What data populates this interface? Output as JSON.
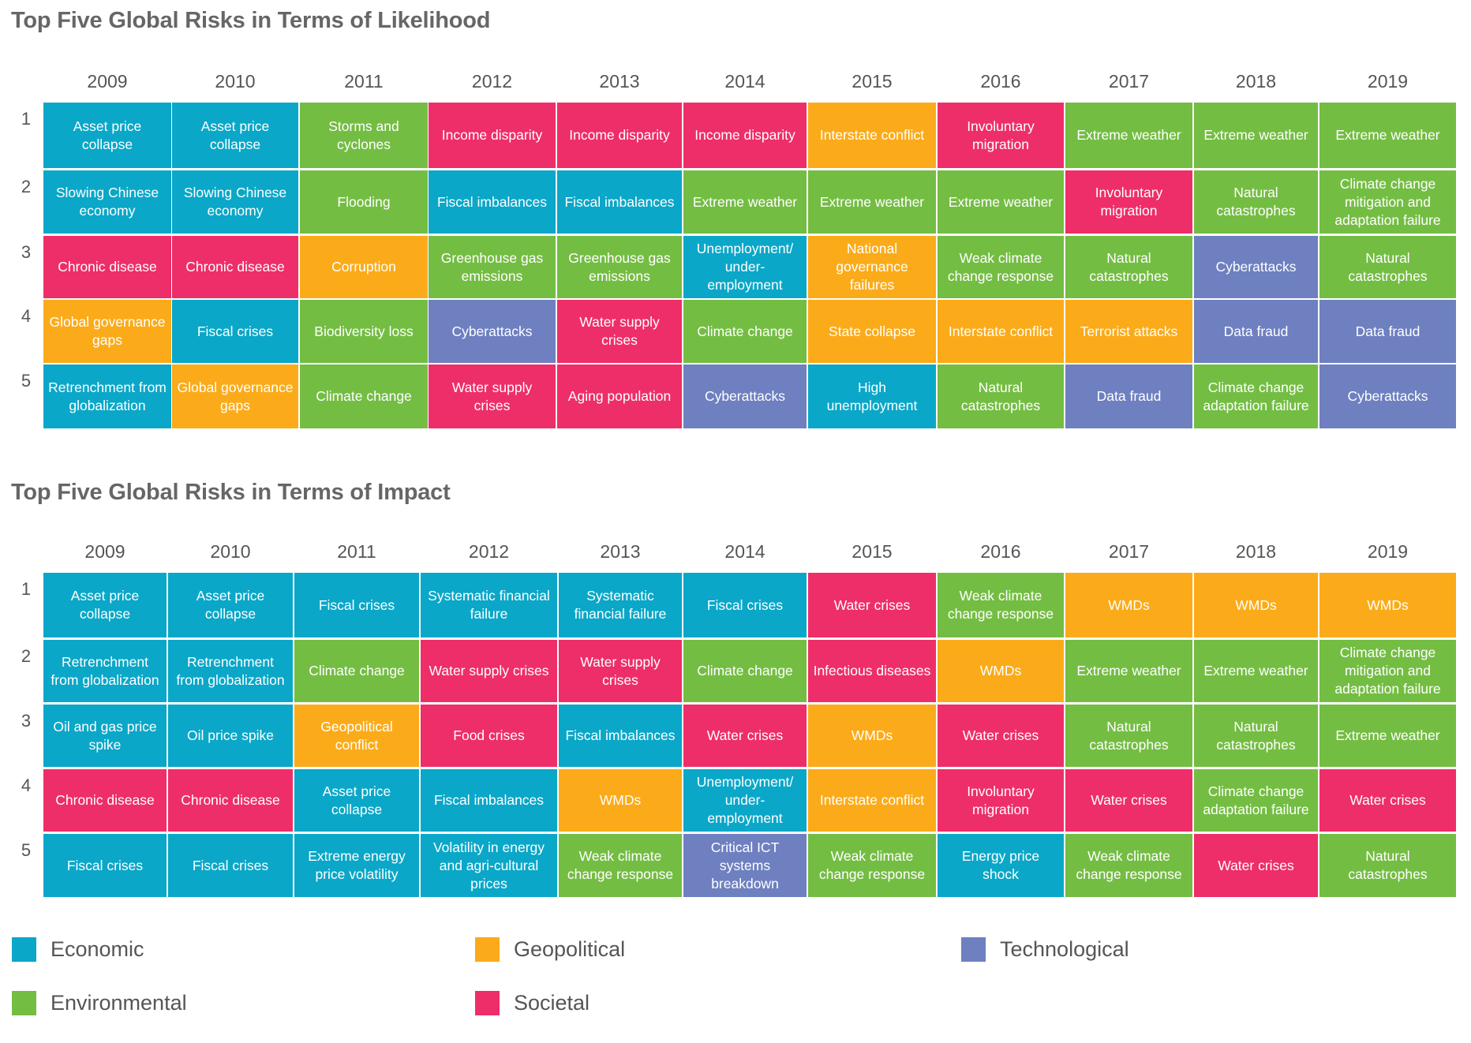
{
  "colors": {
    "Economic": "#0aa7c8",
    "Geopolitical": "#fbab19",
    "Technological": "#6e80c0",
    "Environmental": "#74bd43",
    "Societal": "#ee2e68"
  },
  "legend": [
    {
      "category": "Economic",
      "label": "Economic"
    },
    {
      "category": "Geopolitical",
      "label": "Geopolitical"
    },
    {
      "category": "Technological",
      "label": "Technological"
    },
    {
      "category": "Environmental",
      "label": "Environmental"
    },
    {
      "category": "Societal",
      "label": "Societal"
    }
  ],
  "chart_data": [
    {
      "type": "table",
      "title": "Top Five Global Risks in Terms of Likelihood",
      "years": [
        "2009",
        "2010",
        "2011",
        "2012",
        "2013",
        "2014",
        "2015",
        "2016",
        "2017",
        "2018",
        "2019"
      ],
      "ranks": [
        "1",
        "2",
        "3",
        "4",
        "5"
      ],
      "cells": [
        [
          {
            "label": "Asset price collapse",
            "category": "Economic"
          },
          {
            "label": "Asset price collapse",
            "category": "Economic"
          },
          {
            "label": "Storms and cyclones",
            "category": "Environmental"
          },
          {
            "label": "Income disparity",
            "category": "Societal"
          },
          {
            "label": "Income disparity",
            "category": "Societal"
          },
          {
            "label": "Income disparity",
            "category": "Societal"
          },
          {
            "label": "Interstate conflict",
            "category": "Geopolitical"
          },
          {
            "label": "Involuntary migration",
            "category": "Societal"
          },
          {
            "label": "Extreme weather",
            "category": "Environmental"
          },
          {
            "label": "Extreme weather",
            "category": "Environmental"
          },
          {
            "label": "Extreme weather",
            "category": "Environmental"
          }
        ],
        [
          {
            "label": "Slowing Chinese economy",
            "category": "Economic"
          },
          {
            "label": "Slowing Chinese economy",
            "category": "Economic"
          },
          {
            "label": "Flooding",
            "category": "Environmental"
          },
          {
            "label": "Fiscal imbalances",
            "category": "Economic"
          },
          {
            "label": "Fiscal imbalances",
            "category": "Economic"
          },
          {
            "label": "Extreme weather",
            "category": "Environmental"
          },
          {
            "label": "Extreme weather",
            "category": "Environmental"
          },
          {
            "label": "Extreme weather",
            "category": "Environmental"
          },
          {
            "label": "Involuntary migration",
            "category": "Societal"
          },
          {
            "label": "Natural catastrophes",
            "category": "Environmental"
          },
          {
            "label": "Climate change mitigation and adaptation failure",
            "category": "Environmental"
          }
        ],
        [
          {
            "label": "Chronic disease",
            "category": "Societal"
          },
          {
            "label": "Chronic disease",
            "category": "Societal"
          },
          {
            "label": "Corruption",
            "category": "Geopolitical"
          },
          {
            "label": "Greenhouse gas emissions",
            "category": "Environmental"
          },
          {
            "label": "Greenhouse gas emissions",
            "category": "Environmental"
          },
          {
            "label": "Unemployment/ under-employment",
            "category": "Economic"
          },
          {
            "label": "National governance failures",
            "category": "Geopolitical"
          },
          {
            "label": "Weak climate change response",
            "category": "Environmental"
          },
          {
            "label": "Natural catastrophes",
            "category": "Environmental"
          },
          {
            "label": "Cyberattacks",
            "category": "Technological"
          },
          {
            "label": "Natural catastrophes",
            "category": "Environmental"
          }
        ],
        [
          {
            "label": "Global governance gaps",
            "category": "Geopolitical"
          },
          {
            "label": "Fiscal crises",
            "category": "Economic"
          },
          {
            "label": "Biodiversity loss",
            "category": "Environmental"
          },
          {
            "label": "Cyberattacks",
            "category": "Technological"
          },
          {
            "label": "Water supply crises",
            "category": "Societal"
          },
          {
            "label": "Climate change",
            "category": "Environmental"
          },
          {
            "label": "State collapse",
            "category": "Geopolitical"
          },
          {
            "label": "Interstate conflict",
            "category": "Geopolitical"
          },
          {
            "label": "Terrorist attacks",
            "category": "Geopolitical"
          },
          {
            "label": "Data fraud",
            "category": "Technological"
          },
          {
            "label": "Data fraud",
            "category": "Technological"
          }
        ],
        [
          {
            "label": "Retrenchment from globalization",
            "category": "Economic"
          },
          {
            "label": "Global governance gaps",
            "category": "Geopolitical"
          },
          {
            "label": "Climate change",
            "category": "Environmental"
          },
          {
            "label": "Water supply crises",
            "category": "Societal"
          },
          {
            "label": "Aging population",
            "category": "Societal"
          },
          {
            "label": "Cyberattacks",
            "category": "Technological"
          },
          {
            "label": "High unemployment",
            "category": "Economic"
          },
          {
            "label": "Natural catastrophes",
            "category": "Environmental"
          },
          {
            "label": "Data fraud",
            "category": "Technological"
          },
          {
            "label": "Climate change adaptation failure",
            "category": "Environmental"
          },
          {
            "label": "Cyberattacks",
            "category": "Technological"
          }
        ]
      ]
    },
    {
      "type": "table",
      "title": "Top Five Global Risks in Terms of Impact",
      "years": [
        "2009",
        "2010",
        "2011",
        "2012",
        "2013",
        "2014",
        "2015",
        "2016",
        "2017",
        "2018",
        "2019"
      ],
      "ranks": [
        "1",
        "2",
        "3",
        "4",
        "5"
      ],
      "cells": [
        [
          {
            "label": "Asset price collapse",
            "category": "Economic"
          },
          {
            "label": "Asset price collapse",
            "category": "Economic"
          },
          {
            "label": "Fiscal crises",
            "category": "Economic"
          },
          {
            "label": "Systematic financial failure",
            "category": "Economic"
          },
          {
            "label": "Systematic financial failure",
            "category": "Economic"
          },
          {
            "label": "Fiscal crises",
            "category": "Economic"
          },
          {
            "label": "Water crises",
            "category": "Societal"
          },
          {
            "label": "Weak climate change response",
            "category": "Environmental"
          },
          {
            "label": "WMDs",
            "category": "Geopolitical"
          },
          {
            "label": "WMDs",
            "category": "Geopolitical"
          },
          {
            "label": "WMDs",
            "category": "Geopolitical"
          }
        ],
        [
          {
            "label": "Retrenchment from globalization",
            "category": "Economic"
          },
          {
            "label": "Retrenchment from globalization",
            "category": "Economic"
          },
          {
            "label": "Climate change",
            "category": "Environmental"
          },
          {
            "label": "Water supply crises",
            "category": "Societal"
          },
          {
            "label": "Water supply crises",
            "category": "Societal"
          },
          {
            "label": "Climate change",
            "category": "Environmental"
          },
          {
            "label": "Infectious diseases",
            "category": "Societal"
          },
          {
            "label": "WMDs",
            "category": "Geopolitical"
          },
          {
            "label": "Extreme weather",
            "category": "Environmental"
          },
          {
            "label": "Extreme weather",
            "category": "Environmental"
          },
          {
            "label": "Climate change mitigation and adaptation failure",
            "category": "Environmental"
          }
        ],
        [
          {
            "label": "Oil and gas price spike",
            "category": "Economic"
          },
          {
            "label": "Oil price spike",
            "category": "Economic"
          },
          {
            "label": "Geopolitical conflict",
            "category": "Geopolitical"
          },
          {
            "label": "Food crises",
            "category": "Societal"
          },
          {
            "label": "Fiscal imbalances",
            "category": "Economic"
          },
          {
            "label": "Water crises",
            "category": "Societal"
          },
          {
            "label": "WMDs",
            "category": "Geopolitical"
          },
          {
            "label": "Water crises",
            "category": "Societal"
          },
          {
            "label": "Natural catastrophes",
            "category": "Environmental"
          },
          {
            "label": "Natural catastrophes",
            "category": "Environmental"
          },
          {
            "label": "Extreme weather",
            "category": "Environmental"
          }
        ],
        [
          {
            "label": "Chronic disease",
            "category": "Societal"
          },
          {
            "label": "Chronic disease",
            "category": "Societal"
          },
          {
            "label": "Asset price collapse",
            "category": "Economic"
          },
          {
            "label": "Fiscal imbalances",
            "category": "Economic"
          },
          {
            "label": "WMDs",
            "category": "Geopolitical"
          },
          {
            "label": "Unemployment/ under-employment",
            "category": "Economic"
          },
          {
            "label": "Interstate conflict",
            "category": "Geopolitical"
          },
          {
            "label": "Involuntary migration",
            "category": "Societal"
          },
          {
            "label": "Water crises",
            "category": "Societal"
          },
          {
            "label": "Climate change adaptation failure",
            "category": "Environmental"
          },
          {
            "label": "Water crises",
            "category": "Societal"
          }
        ],
        [
          {
            "label": "Fiscal crises",
            "category": "Economic"
          },
          {
            "label": "Fiscal crises",
            "category": "Economic"
          },
          {
            "label": "Extreme energy price volatility",
            "category": "Economic"
          },
          {
            "label": "Volatility in energy and agri-cultural prices",
            "category": "Economic"
          },
          {
            "label": "Weak climate change response",
            "category": "Environmental"
          },
          {
            "label": "Critical ICT systems breakdown",
            "category": "Technological"
          },
          {
            "label": "Weak climate change response",
            "category": "Environmental"
          },
          {
            "label": "Energy price shock",
            "category": "Economic"
          },
          {
            "label": "Weak climate change response",
            "category": "Environmental"
          },
          {
            "label": "Water crises",
            "category": "Societal"
          },
          {
            "label": "Natural catastrophes",
            "category": "Environmental"
          }
        ]
      ]
    }
  ]
}
